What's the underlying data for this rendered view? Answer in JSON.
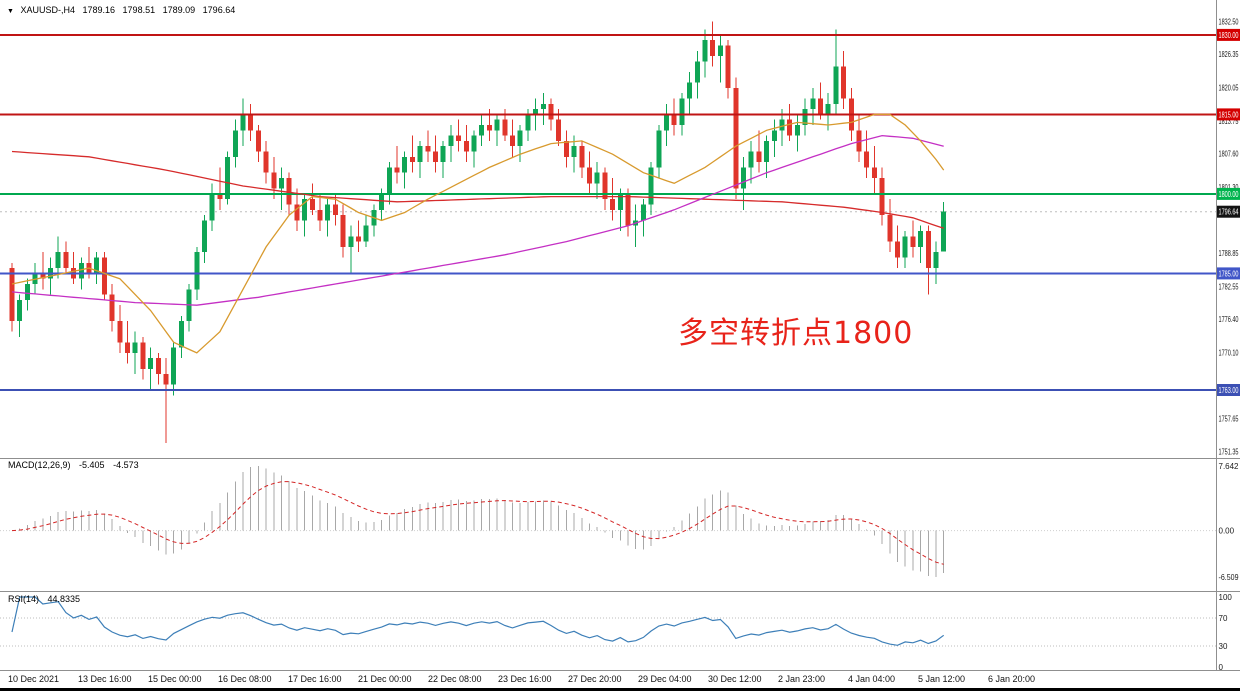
{
  "window": {
    "collapse_arrow": "▼",
    "symbol_timeframe": "XAUUSD-,H4",
    "ohlc": {
      "open": "1789.16",
      "high": "1798.51",
      "low": "1789.09",
      "close": "1796.64"
    }
  },
  "annotation": {
    "text": "多空转折点1800",
    "color": "#e8231a"
  },
  "macd_panel": {
    "label": "MACD(12,26,9)",
    "value": "-5.405",
    "signal_value": "-4.573"
  },
  "rsi_panel": {
    "label": "RSI(14)",
    "value": "44.8335"
  },
  "chart_data": {
    "type": "candlestick",
    "symbol": "XAUUSD-",
    "timeframe": "H4",
    "x_labels": [
      "10 Dec 2021",
      "13 Dec 16:00",
      "15 Dec 00:00",
      "16 Dec 08:00",
      "17 Dec 16:00",
      "21 Dec 00:00",
      "22 Dec 08:00",
      "23 Dec 16:00",
      "27 Dec 20:00",
      "29 Dec 04:00",
      "30 Dec 12:00",
      "2 Jan 23:00",
      "4 Jan 04:00",
      "5 Jan 12:00",
      "6 Jan 20:00"
    ],
    "price_ticks": [
      "1832.50",
      "1826.35",
      "1820.05",
      "1813.75",
      "1807.60",
      "1801.30",
      "1788.85",
      "1782.55",
      "1776.40",
      "1770.10",
      "1757.65",
      "1751.35"
    ],
    "macd_ticks": [
      "7.642",
      "0.00",
      "-6.509"
    ],
    "rsi_ticks": [
      "100",
      "70",
      "30",
      "0"
    ],
    "rsi_levels": [
      70,
      30
    ],
    "levels": [
      {
        "price": 1830.0,
        "label": "1830.00",
        "color": "#c01414",
        "badge": "#d40000",
        "width": 2
      },
      {
        "price": 1815.0,
        "label": "1815.00",
        "color": "#c01414",
        "badge": "#d40000",
        "width": 2
      },
      {
        "price": 1800.0,
        "label": "1800.00",
        "color": "#00a84f",
        "badge": "#00b44e",
        "width": 2
      },
      {
        "price": 1785.0,
        "label": "1785.00",
        "color": "#4156c8",
        "badge": "#4156c8",
        "width": 2
      },
      {
        "price": 1763.0,
        "label": "1763.00",
        "color": "#3c50b4",
        "badge": "#3c50b4",
        "width": 2
      }
    ],
    "current_price": {
      "value": 1796.64,
      "label": "1796.64",
      "badge_color": "#141414"
    },
    "colors": {
      "up": "#0fa555",
      "down": "#e0352b",
      "histogram": "#a8a8a8",
      "macd_signal": "#d42525",
      "rsi_line": "#3d7fb8"
    },
    "indicators": {
      "macd": {
        "fast": 12,
        "slow": 26,
        "signal": 9
      },
      "rsi": {
        "period": 14
      }
    },
    "candles": [
      [
        1786,
        1787,
        1774,
        1776
      ],
      [
        1776,
        1781,
        1773,
        1780
      ],
      [
        1780,
        1784,
        1778,
        1783
      ],
      [
        1783,
        1787,
        1781,
        1785
      ],
      [
        1785,
        1789,
        1782,
        1784
      ],
      [
        1784,
        1788,
        1781,
        1786
      ],
      [
        1786,
        1792,
        1784,
        1789
      ],
      [
        1789,
        1791,
        1785,
        1786
      ],
      [
        1786,
        1789,
        1783,
        1784
      ],
      [
        1784,
        1788,
        1782,
        1787
      ],
      [
        1787,
        1790,
        1784,
        1785
      ],
      [
        1785,
        1789,
        1783,
        1788
      ],
      [
        1788,
        1789,
        1780,
        1781
      ],
      [
        1781,
        1783,
        1774,
        1776
      ],
      [
        1776,
        1779,
        1770,
        1772
      ],
      [
        1772,
        1776,
        1768,
        1770
      ],
      [
        1770,
        1774,
        1766,
        1772
      ],
      [
        1772,
        1773,
        1765,
        1767
      ],
      [
        1767,
        1771,
        1763,
        1769
      ],
      [
        1769,
        1770,
        1764,
        1766
      ],
      [
        1766,
        1769,
        1753,
        1764
      ],
      [
        1764,
        1772,
        1762,
        1771
      ],
      [
        1771,
        1777,
        1769,
        1776
      ],
      [
        1776,
        1783,
        1774,
        1782
      ],
      [
        1782,
        1790,
        1780,
        1789
      ],
      [
        1789,
        1796,
        1787,
        1795
      ],
      [
        1795,
        1802,
        1793,
        1800
      ],
      [
        1800,
        1805,
        1797,
        1799
      ],
      [
        1799,
        1808,
        1798,
        1807
      ],
      [
        1807,
        1814,
        1805,
        1812
      ],
      [
        1812,
        1818,
        1809,
        1815
      ],
      [
        1815,
        1817,
        1810,
        1812
      ],
      [
        1812,
        1813,
        1806,
        1808
      ],
      [
        1808,
        1810,
        1802,
        1804
      ],
      [
        1804,
        1807,
        1799,
        1801
      ],
      [
        1801,
        1805,
        1797,
        1803
      ],
      [
        1803,
        1804,
        1796,
        1798
      ],
      [
        1798,
        1801,
        1793,
        1795
      ],
      [
        1795,
        1800,
        1792,
        1799
      ],
      [
        1799,
        1802,
        1796,
        1797
      ],
      [
        1797,
        1800,
        1793,
        1795
      ],
      [
        1795,
        1799,
        1792,
        1798
      ],
      [
        1798,
        1800,
        1794,
        1796
      ],
      [
        1796,
        1798,
        1788,
        1790
      ],
      [
        1790,
        1794,
        1785,
        1792
      ],
      [
        1792,
        1795,
        1789,
        1791
      ],
      [
        1791,
        1796,
        1790,
        1794
      ],
      [
        1794,
        1798,
        1792,
        1797
      ],
      [
        1797,
        1801,
        1795,
        1800
      ],
      [
        1800,
        1806,
        1798,
        1805
      ],
      [
        1805,
        1809,
        1802,
        1804
      ],
      [
        1804,
        1808,
        1801,
        1807
      ],
      [
        1807,
        1811,
        1804,
        1806
      ],
      [
        1806,
        1810,
        1803,
        1809
      ],
      [
        1809,
        1812,
        1806,
        1808
      ],
      [
        1808,
        1811,
        1804,
        1806
      ],
      [
        1806,
        1810,
        1803,
        1809
      ],
      [
        1809,
        1813,
        1806,
        1811
      ],
      [
        1811,
        1814,
        1808,
        1810
      ],
      [
        1810,
        1813,
        1806,
        1808
      ],
      [
        1808,
        1812,
        1805,
        1811
      ],
      [
        1811,
        1815,
        1809,
        1813
      ],
      [
        1813,
        1816,
        1810,
        1812
      ],
      [
        1812,
        1815,
        1809,
        1814
      ],
      [
        1814,
        1816,
        1810,
        1811
      ],
      [
        1811,
        1814,
        1807,
        1809
      ],
      [
        1809,
        1813,
        1806,
        1812
      ],
      [
        1812,
        1816,
        1810,
        1815
      ],
      [
        1815,
        1818,
        1812,
        1816
      ],
      [
        1816,
        1819,
        1813,
        1817
      ],
      [
        1817,
        1818,
        1812,
        1814
      ],
      [
        1814,
        1816,
        1809,
        1810
      ],
      [
        1810,
        1812,
        1805,
        1807
      ],
      [
        1807,
        1811,
        1804,
        1809
      ],
      [
        1809,
        1810,
        1803,
        1805
      ],
      [
        1805,
        1808,
        1800,
        1802
      ],
      [
        1802,
        1806,
        1799,
        1804
      ],
      [
        1804,
        1805,
        1797,
        1799
      ],
      [
        1799,
        1803,
        1795,
        1797
      ],
      [
        1797,
        1801,
        1793,
        1800
      ],
      [
        1800,
        1801,
        1792,
        1794
      ],
      [
        1794,
        1798,
        1790,
        1795
      ],
      [
        1795,
        1799,
        1792,
        1798
      ],
      [
        1798,
        1806,
        1796,
        1805
      ],
      [
        1805,
        1813,
        1803,
        1812
      ],
      [
        1812,
        1817,
        1809,
        1815
      ],
      [
        1815,
        1818,
        1811,
        1813
      ],
      [
        1813,
        1819,
        1811,
        1818
      ],
      [
        1818,
        1823,
        1815,
        1821
      ],
      [
        1821,
        1827,
        1818,
        1825
      ],
      [
        1825,
        1831,
        1822,
        1829
      ],
      [
        1829,
        1832.5,
        1824,
        1826
      ],
      [
        1826,
        1830,
        1821,
        1828
      ],
      [
        1828,
        1829,
        1818,
        1820
      ],
      [
        1820,
        1822,
        1799,
        1801
      ],
      [
        1801,
        1807,
        1797,
        1805
      ],
      [
        1805,
        1810,
        1802,
        1808
      ],
      [
        1808,
        1812,
        1804,
        1806
      ],
      [
        1806,
        1811,
        1803,
        1810
      ],
      [
        1810,
        1814,
        1807,
        1812
      ],
      [
        1812,
        1816,
        1809,
        1814
      ],
      [
        1814,
        1817,
        1810,
        1811
      ],
      [
        1811,
        1815,
        1808,
        1813
      ],
      [
        1813,
        1818,
        1811,
        1816
      ],
      [
        1816,
        1820,
        1813,
        1818
      ],
      [
        1818,
        1821,
        1814,
        1815
      ],
      [
        1815,
        1819,
        1812,
        1817
      ],
      [
        1817,
        1831,
        1815,
        1824
      ],
      [
        1824,
        1827,
        1816,
        1818
      ],
      [
        1818,
        1820,
        1810,
        1812
      ],
      [
        1812,
        1815,
        1806,
        1808
      ],
      [
        1808,
        1812,
        1803,
        1805
      ],
      [
        1805,
        1809,
        1800,
        1803
      ],
      [
        1803,
        1805,
        1794,
        1796
      ],
      [
        1796,
        1799,
        1789,
        1791
      ],
      [
        1791,
        1794,
        1786,
        1788
      ],
      [
        1788,
        1793,
        1786,
        1792
      ],
      [
        1792,
        1795,
        1788,
        1790
      ],
      [
        1790,
        1794,
        1787,
        1793
      ],
      [
        1793,
        1794,
        1781,
        1786
      ],
      [
        1786,
        1791,
        1783,
        1789
      ],
      [
        1789.16,
        1798.51,
        1789.09,
        1796.64
      ]
    ],
    "moving_averages": [
      {
        "name": "slow-ma-red-line",
        "color": "#d62b2b",
        "points": [
          [
            0,
            1808
          ],
          [
            10,
            1807
          ],
          [
            20,
            1804.5
          ],
          [
            30,
            1801.5
          ],
          [
            40,
            1799.5
          ],
          [
            50,
            1798.5
          ],
          [
            60,
            1799
          ],
          [
            70,
            1799.5
          ],
          [
            80,
            1799.5
          ],
          [
            90,
            1799
          ],
          [
            100,
            1798.5
          ],
          [
            108,
            1797.5
          ],
          [
            113,
            1796.5
          ],
          [
            117,
            1795.5
          ],
          [
            121,
            1793.5
          ]
        ]
      },
      {
        "name": "mid-ma-magenta-line",
        "color": "#c430c4",
        "points": [
          [
            0,
            1781.5
          ],
          [
            8,
            1780.5
          ],
          [
            16,
            1779.5
          ],
          [
            24,
            1779
          ],
          [
            32,
            1780.5
          ],
          [
            40,
            1782.5
          ],
          [
            48,
            1784.5
          ],
          [
            56,
            1786.5
          ],
          [
            64,
            1788.5
          ],
          [
            72,
            1791
          ],
          [
            80,
            1794
          ],
          [
            86,
            1797
          ],
          [
            92,
            1800.5
          ],
          [
            98,
            1804
          ],
          [
            104,
            1807
          ],
          [
            109,
            1809.5
          ],
          [
            113,
            1811
          ],
          [
            117,
            1810.5
          ],
          [
            121,
            1809
          ]
        ]
      },
      {
        "name": "fast-ma-orange-line",
        "color": "#d89a2e",
        "points": [
          [
            0,
            1783
          ],
          [
            5,
            1784.5
          ],
          [
            10,
            1786
          ],
          [
            14,
            1784
          ],
          [
            18,
            1778
          ],
          [
            21,
            1772
          ],
          [
            24,
            1770
          ],
          [
            27,
            1774
          ],
          [
            30,
            1782
          ],
          [
            33,
            1790
          ],
          [
            36,
            1796
          ],
          [
            39,
            1799.5
          ],
          [
            42,
            1799
          ],
          [
            45,
            1796.5
          ],
          [
            48,
            1795
          ],
          [
            51,
            1796.5
          ],
          [
            54,
            1799
          ],
          [
            58,
            1802
          ],
          [
            62,
            1805
          ],
          [
            66,
            1807.5
          ],
          [
            70,
            1809.5
          ],
          [
            74,
            1810
          ],
          [
            78,
            1807.5
          ],
          [
            82,
            1804
          ],
          [
            86,
            1802
          ],
          [
            90,
            1805
          ],
          [
            94,
            1809
          ],
          [
            98,
            1812
          ],
          [
            102,
            1813.5
          ],
          [
            106,
            1813
          ],
          [
            109,
            1813.5
          ],
          [
            112,
            1815
          ],
          [
            114,
            1815
          ],
          [
            116,
            1813
          ],
          [
            118,
            1810
          ],
          [
            120,
            1806.5
          ],
          [
            121,
            1804.5
          ]
        ]
      }
    ]
  }
}
